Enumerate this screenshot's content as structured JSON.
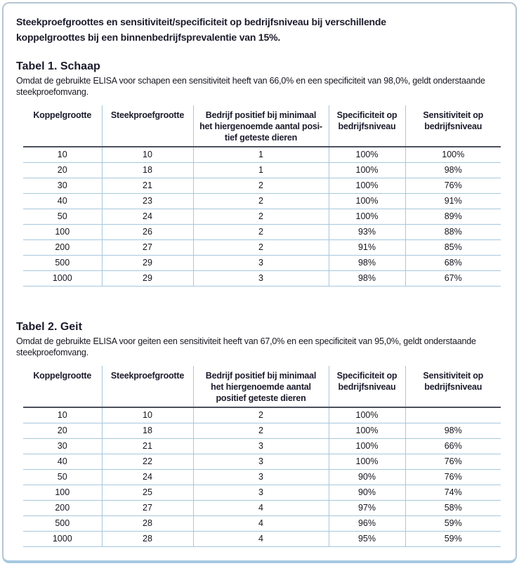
{
  "page": {
    "title_lines": [
      "Steekproefgroottes en sensitiviteit/specificiteit op bedrijfsniveau bij verschillende",
      "koppelgroottes bij een binnenbedrijfsprevalentie van 15%."
    ]
  },
  "colors": {
    "accent_line": "#a6c7dd",
    "panel_border": "#b6c5d3",
    "panel_border_bottom": "#a6c9e0",
    "heading_text": "#1b1b2c",
    "header_rule": "#4a505c"
  },
  "tables": [
    {
      "caption": "Tabel 1. Schaap",
      "description_lines": [
        "Omdat de gebruikte ELISA voor schapen een sensitiviteit heeft van 66,0% en een specificiteit van 98,0%, geldt onderstaande",
        "steekproefomvang."
      ],
      "headers": [
        [
          "Koppelgrootte"
        ],
        [
          "Steekproefgrootte"
        ],
        [
          "Bedrijf positief bij minimaal",
          "het hiergenoemde aantal posi-",
          "tief geteste dieren"
        ],
        [
          "Specificiteit op",
          "bedrijfsniveau"
        ],
        [
          "Sensitiviteit op",
          "bedrijfsniveau"
        ]
      ],
      "rows": [
        [
          "10",
          "10",
          "1",
          "100%",
          "100%"
        ],
        [
          "20",
          "18",
          "1",
          "100%",
          "98%"
        ],
        [
          "30",
          "21",
          "2",
          "100%",
          "76%"
        ],
        [
          "40",
          "23",
          "2",
          "100%",
          "91%"
        ],
        [
          "50",
          "24",
          "2",
          "100%",
          "89%"
        ],
        [
          "100",
          "26",
          "2",
          "93%",
          "88%"
        ],
        [
          "200",
          "27",
          "2",
          "91%",
          "85%"
        ],
        [
          "500",
          "29",
          "3",
          "98%",
          "68%"
        ],
        [
          "1000",
          "29",
          "3",
          "98%",
          "67%"
        ]
      ]
    },
    {
      "caption": "Tabel 2. Geit",
      "description_lines": [
        "Omdat de gebruikte ELISA voor geiten een sensitiviteit heeft van 67,0% en een specificiteit van 95,0%, geldt onderstaande",
        "steekproefomvang."
      ],
      "headers": [
        [
          "Koppelgrootte"
        ],
        [
          "Steekproefgrootte"
        ],
        [
          "Bedrijf positief bij minimaal",
          "het hiergenoemde aantal",
          "positief geteste dieren"
        ],
        [
          "Specificiteit op",
          "bedrijfsniveau"
        ],
        [
          "Sensitiviteit op",
          "bedrijfsniveau"
        ]
      ],
      "rows": [
        [
          "10",
          "10",
          "2",
          "100%",
          ""
        ],
        [
          "20",
          "18",
          "2",
          "100%",
          "98%"
        ],
        [
          "30",
          "21",
          "3",
          "100%",
          "66%"
        ],
        [
          "40",
          "22",
          "3",
          "100%",
          "76%"
        ],
        [
          "50",
          "24",
          "3",
          "90%",
          "76%"
        ],
        [
          "100",
          "25",
          "3",
          "90%",
          "74%"
        ],
        [
          "200",
          "27",
          "4",
          "97%",
          "58%"
        ],
        [
          "500",
          "28",
          "4",
          "96%",
          "59%"
        ],
        [
          "1000",
          "28",
          "4",
          "95%",
          "59%"
        ]
      ]
    }
  ]
}
